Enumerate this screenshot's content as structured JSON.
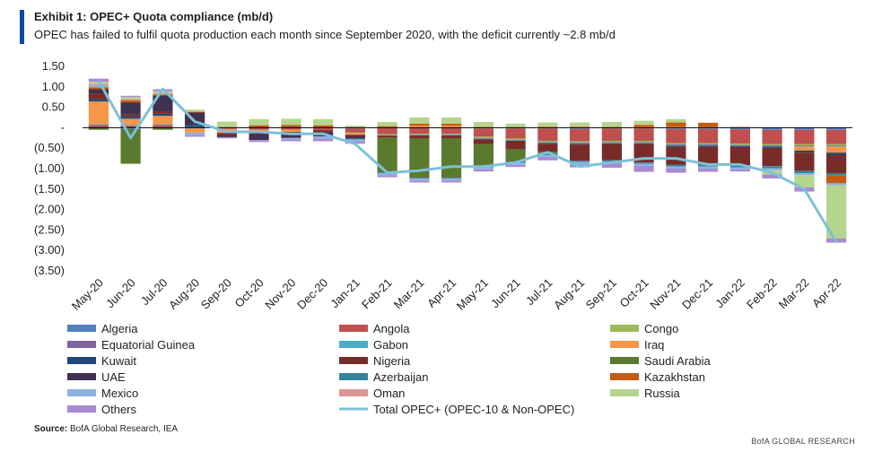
{
  "header": {
    "title": "Exhibit 1: OPEC+ Quota compliance (mb/d)",
    "subtitle": "OPEC has failed to fulfil quota production each month since September 2020, with the deficit currently ~2.8 mb/d"
  },
  "source": {
    "label": "Source:",
    "text": "BofA Global Research, IEA"
  },
  "footer": "BofA GLOBAL RESEARCH",
  "chart_data": {
    "type": "bar",
    "stacked": true,
    "title": "",
    "xlabel": "",
    "ylabel": "",
    "ylim": [
      -3.5,
      1.5
    ],
    "yticks": [
      1.5,
      1.0,
      0.5,
      0,
      -0.5,
      -1.0,
      -1.5,
      -2.0,
      -2.5,
      -3.0,
      -3.5
    ],
    "ytick_labels": [
      "1.50",
      "1.00",
      "0.50",
      "-",
      "(0.50)",
      "(1.00)",
      "(1.50)",
      "(2.00)",
      "(2.50)",
      "(3.00)",
      "(3.50)"
    ],
    "grid": false,
    "legend_position": "bottom",
    "categories": [
      "May-20",
      "Jun-20",
      "Jul-20",
      "Aug-20",
      "Sep-20",
      "Oct-20",
      "Nov-20",
      "Dec-20",
      "Jan-21",
      "Feb-21",
      "Mar-21",
      "Apr-21",
      "May-21",
      "Jun-21",
      "Jul-21",
      "Aug-21",
      "Sep-21",
      "Oct-21",
      "Nov-21",
      "Dec-21",
      "Jan-22",
      "Feb-22",
      "Mar-22",
      "Apr-22"
    ],
    "series": [
      {
        "name": "Algeria",
        "color": "#4f81bd",
        "values": [
          0.02,
          -0.03,
          0.02,
          -0.02,
          0,
          0.01,
          0.02,
          0.01,
          -0.02,
          -0.01,
          0,
          0,
          -0.02,
          -0.02,
          -0.02,
          -0.03,
          -0.02,
          -0.02,
          -0.03,
          -0.03,
          -0.04,
          -0.05,
          -0.05,
          -0.05
        ]
      },
      {
        "name": "Angola",
        "color": "#c0504d",
        "values": [
          0.05,
          0.05,
          0.05,
          0,
          -0.03,
          -0.05,
          -0.05,
          -0.06,
          -0.1,
          -0.15,
          -0.15,
          -0.15,
          -0.2,
          -0.25,
          -0.3,
          -0.3,
          -0.3,
          -0.3,
          -0.35,
          -0.35,
          -0.35,
          -0.35,
          -0.35,
          -0.35
        ]
      },
      {
        "name": "Congo",
        "color": "#9bbb59",
        "values": [
          0,
          0,
          0,
          0,
          0,
          0,
          0,
          0,
          -0.02,
          -0.02,
          -0.02,
          -0.02,
          -0.03,
          -0.03,
          -0.03,
          -0.03,
          -0.03,
          -0.03,
          -0.03,
          -0.03,
          -0.03,
          -0.03,
          -0.03,
          -0.03
        ]
      },
      {
        "name": "Equatorial Guinea",
        "color": "#8064a2",
        "values": [
          0,
          0,
          0,
          0,
          0,
          0,
          0,
          0,
          0,
          0,
          0,
          0,
          -0.01,
          -0.01,
          -0.01,
          -0.02,
          -0.02,
          -0.02,
          -0.02,
          -0.02,
          -0.02,
          -0.02,
          -0.02,
          -0.02
        ]
      },
      {
        "name": "Gabon",
        "color": "#4bacc6",
        "values": [
          0.02,
          0.02,
          0.02,
          0.02,
          0,
          0,
          0,
          0,
          0,
          -0.01,
          -0.01,
          -0.01,
          -0.01,
          -0.01,
          -0.01,
          -0.01,
          -0.01,
          -0.01,
          -0.01,
          -0.01,
          -0.01,
          -0.01,
          -0.01,
          -0.01
        ]
      },
      {
        "name": "Iraq",
        "color": "#f79646",
        "values": [
          0.55,
          0.15,
          0.2,
          -0.1,
          -0.1,
          -0.05,
          -0.05,
          0,
          -0.03,
          0.02,
          0.05,
          0.05,
          0.02,
          0,
          0.03,
          0.03,
          0.02,
          0.02,
          0.03,
          0.02,
          0.02,
          0,
          -0.1,
          -0.15
        ]
      },
      {
        "name": "Kuwait",
        "color": "#1f497d",
        "values": [
          0.05,
          0.05,
          0.05,
          0.05,
          0,
          0,
          0,
          0,
          0,
          0,
          -0.01,
          -0.01,
          -0.01,
          -0.01,
          -0.02,
          -0.02,
          -0.02,
          -0.02,
          -0.02,
          -0.02,
          -0.02,
          -0.03,
          -0.05,
          -0.05
        ]
      },
      {
        "name": "Nigeria",
        "color": "#772c2a",
        "values": [
          0.15,
          0.05,
          0.05,
          0,
          -0.05,
          -0.05,
          -0.05,
          -0.05,
          -0.05,
          -0.05,
          -0.08,
          -0.08,
          -0.12,
          -0.2,
          -0.2,
          -0.4,
          -0.4,
          -0.45,
          -0.45,
          -0.45,
          -0.45,
          -0.45,
          -0.45,
          -0.45
        ]
      },
      {
        "name": "Saudi Arabia",
        "color": "#5a7a2e",
        "values": [
          -0.05,
          -0.85,
          -0.05,
          0,
          0,
          0,
          0,
          0,
          0,
          -0.85,
          -0.95,
          -0.95,
          -0.55,
          -0.3,
          -0.05,
          0,
          0,
          0,
          0,
          0,
          0,
          0,
          0,
          0
        ]
      },
      {
        "name": "UAE",
        "color": "#3f3151",
        "values": [
          0.1,
          0.3,
          0.4,
          0.3,
          -0.05,
          -0.15,
          -0.1,
          -0.1,
          -0.05,
          0,
          0,
          0,
          0,
          0,
          0,
          0,
          0,
          0,
          0,
          0,
          0,
          0,
          0,
          0
        ]
      },
      {
        "name": "Azerbaijan",
        "color": "#31859c",
        "values": [
          0,
          0,
          0,
          0,
          0,
          0,
          0,
          0,
          -0.02,
          -0.02,
          -0.02,
          -0.02,
          -0.02,
          -0.03,
          -0.03,
          -0.03,
          -0.03,
          -0.03,
          -0.04,
          -0.04,
          -0.05,
          -0.05,
          -0.05,
          -0.05
        ]
      },
      {
        "name": "Kazakhstan",
        "color": "#c55a11",
        "values": [
          0.05,
          0.05,
          0.02,
          0.02,
          0,
          0.05,
          0.05,
          0.05,
          0,
          0.02,
          0.05,
          0.05,
          0,
          0,
          0,
          0,
          0,
          0.05,
          0.1,
          0.1,
          0,
          0,
          0,
          -0.2
        ]
      },
      {
        "name": "Mexico",
        "color": "#8db3e2",
        "values": [
          0.05,
          0,
          0,
          -0.05,
          0,
          0,
          -0.03,
          -0.05,
          -0.05,
          -0.05,
          -0.05,
          -0.05,
          -0.05,
          -0.05,
          -0.05,
          -0.05,
          -0.05,
          -0.05,
          -0.05,
          -0.05,
          -0.05,
          -0.05,
          -0.05,
          -0.05
        ]
      },
      {
        "name": "Oman",
        "color": "#d99694",
        "values": [
          0.03,
          0.03,
          0.03,
          0,
          0,
          0,
          0,
          0,
          0,
          0,
          0,
          0,
          0,
          0,
          0,
          0,
          0,
          0,
          0,
          0,
          0,
          0,
          0,
          0
        ]
      },
      {
        "name": "Russia",
        "color": "#b5d58f",
        "values": [
          0.05,
          0.05,
          0.05,
          0.05,
          0.15,
          0.15,
          0.15,
          0.15,
          0.05,
          0.1,
          0.15,
          0.15,
          0.12,
          0.1,
          0.1,
          0.1,
          0.12,
          0.1,
          0.08,
          0,
          0,
          -0.1,
          -0.3,
          -1.3
        ]
      },
      {
        "name": "Others",
        "color": "#a98ad1",
        "values": [
          0.08,
          0.03,
          0.05,
          -0.05,
          -0.03,
          -0.05,
          -0.05,
          -0.07,
          -0.05,
          -0.05,
          -0.05,
          -0.05,
          -0.05,
          -0.05,
          -0.08,
          -0.08,
          -0.1,
          -0.15,
          -0.1,
          -0.08,
          -0.05,
          -0.1,
          -0.1,
          -0.1
        ]
      }
    ],
    "line": {
      "name": "Total OPEC+ (OPEC-10 & Non-OPEC)",
      "color": "#7ec0d8",
      "values": [
        1.15,
        -0.25,
        0.95,
        0.15,
        -0.1,
        -0.1,
        -0.15,
        -0.15,
        -0.4,
        -1.1,
        -1.05,
        -0.95,
        -0.95,
        -0.85,
        -0.6,
        -0.95,
        -0.85,
        -0.75,
        -0.75,
        -0.9,
        -0.9,
        -1.1,
        -1.5,
        -2.8
      ]
    },
    "legend": {
      "columns": [
        [
          "Algeria",
          "Equatorial Guinea",
          "Kuwait",
          "UAE",
          "Mexico",
          "Others"
        ],
        [
          "Angola",
          "Gabon",
          "Nigeria",
          "Azerbaijan",
          "Oman",
          "Total OPEC+ (OPEC-10 & Non-OPEC)"
        ],
        [
          "Congo",
          "Iraq",
          "Saudi Arabia",
          "Kazakhstan",
          "Russia"
        ]
      ]
    }
  }
}
